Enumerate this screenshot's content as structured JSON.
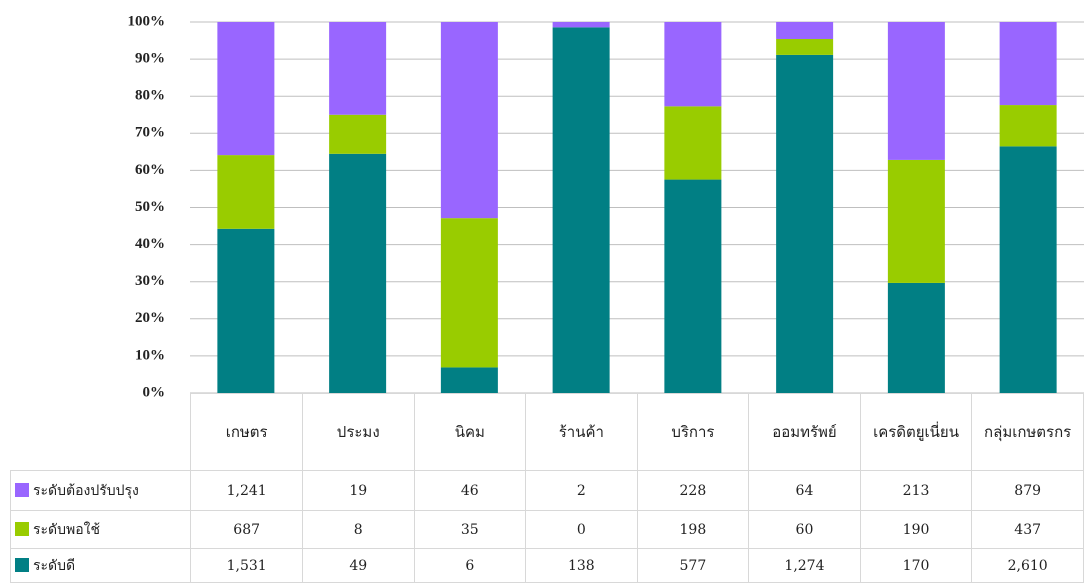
{
  "chart_data": {
    "type": "bar",
    "stacked_percent": true,
    "categories": [
      "เกษตร",
      "ประมง",
      "นิคม",
      "ร้านค้า",
      "บริการ",
      "ออมทรัพย์",
      "เครดิตยูเนี่ยน",
      "กลุ่มเกษตรกร"
    ],
    "series": [
      {
        "name": "ระดับต้องปรับปรุง",
        "color": "#9966ff",
        "values": [
          1241,
          19,
          46,
          2,
          228,
          64,
          213,
          879
        ],
        "value_labels": [
          "1,241",
          "19",
          "46",
          "2",
          "228",
          "64",
          "213",
          "879"
        ]
      },
      {
        "name": "ระดับพอใช้",
        "color": "#99cc00",
        "values": [
          687,
          8,
          35,
          0,
          198,
          60,
          190,
          437
        ],
        "value_labels": [
          "687",
          "8",
          "35",
          "0",
          "198",
          "60",
          "190",
          "437"
        ]
      },
      {
        "name": "ระดับดี",
        "color": "#017f84",
        "values": [
          1531,
          49,
          6,
          138,
          577,
          1274,
          170,
          2610
        ],
        "value_labels": [
          "1,531",
          "49",
          "6",
          "138",
          "577",
          "1,274",
          "170",
          "2,610"
        ]
      }
    ],
    "ylim": [
      0,
      100
    ],
    "yticks": [
      {
        "value": 0,
        "label": "0%"
      },
      {
        "value": 10,
        "label": "10%"
      },
      {
        "value": 20,
        "label": "20%"
      },
      {
        "value": 30,
        "label": "30%"
      },
      {
        "value": 40,
        "label": "40%"
      },
      {
        "value": 50,
        "label": "50%"
      },
      {
        "value": 60,
        "label": "60%"
      },
      {
        "value": 70,
        "label": "70%"
      },
      {
        "value": 80,
        "label": "80%"
      },
      {
        "value": 90,
        "label": "90%"
      },
      {
        "value": 100,
        "label": "100%"
      }
    ],
    "grid": true
  }
}
